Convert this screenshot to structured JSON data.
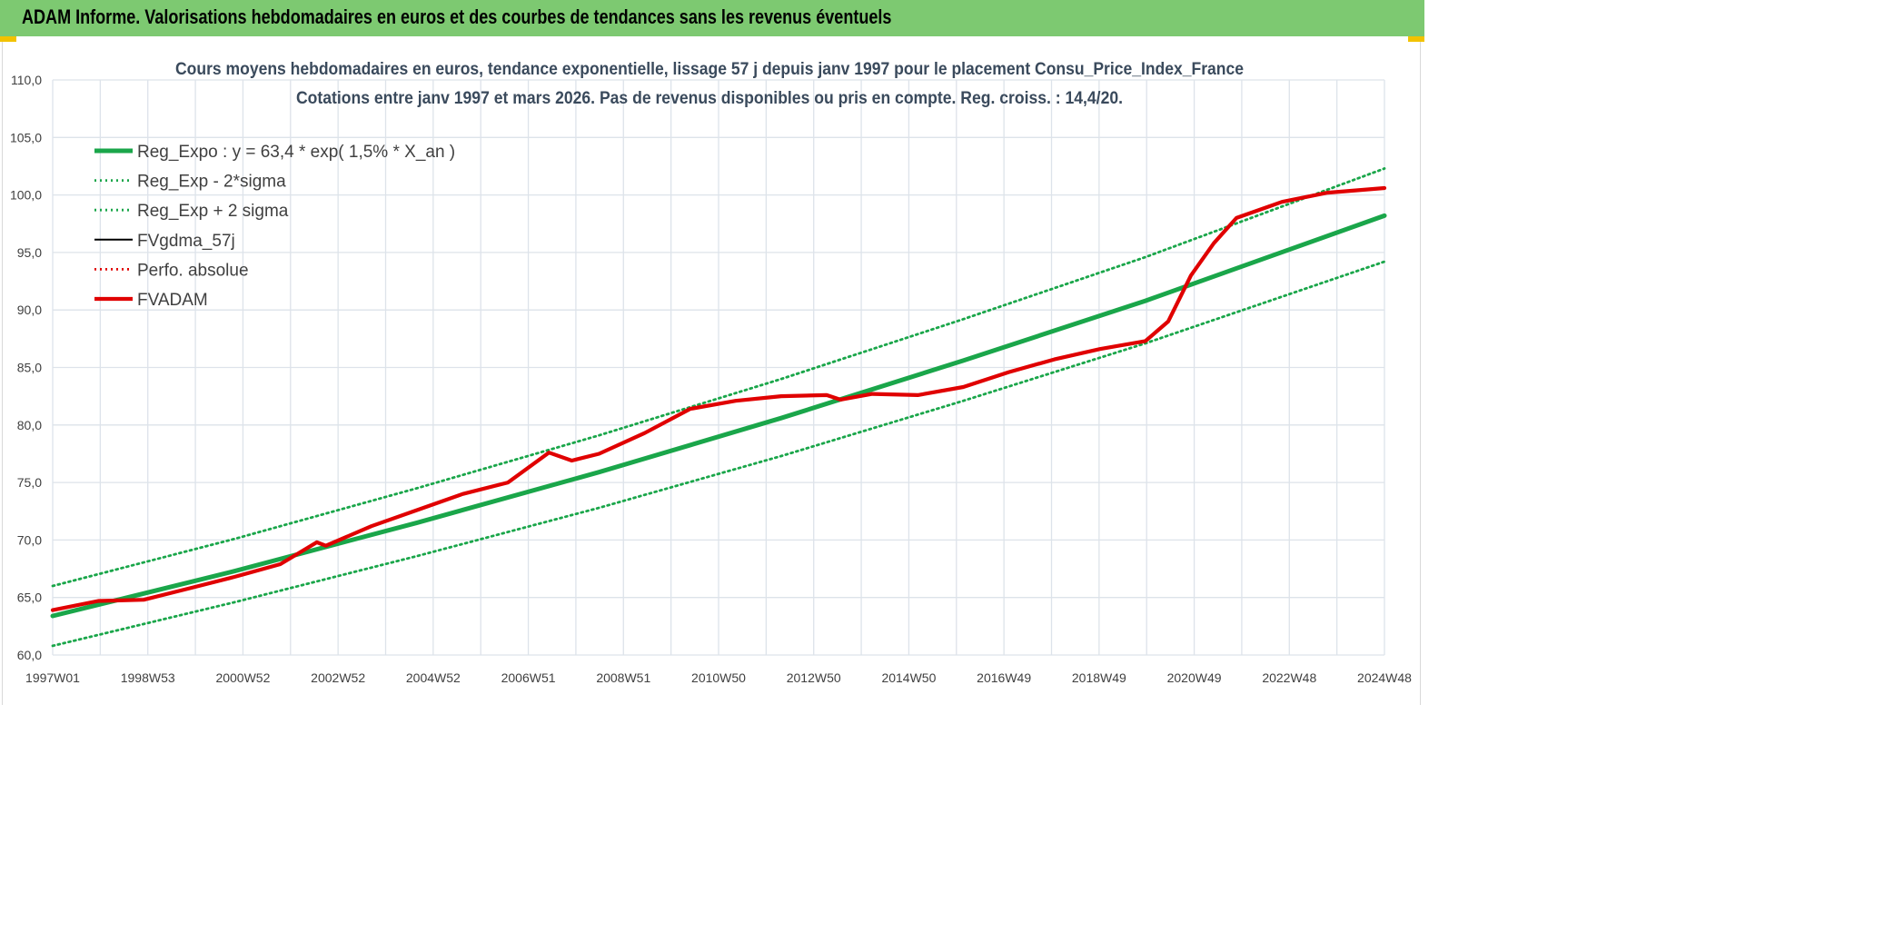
{
  "header": {
    "title": "ADAM Informe. Valorisations hebdomadaires en euros et des courbes de tendances sans les revenus éventuels"
  },
  "colors": {
    "banner": "#7dc971",
    "trend": "#1aa64a",
    "fvadam": "#e00000",
    "fvgdma": "#000000",
    "grid": "#dde3ea",
    "accent": "#f2c200"
  },
  "chart_data": {
    "type": "line",
    "title": "Cours moyens hebdomadaires en euros, tendance exponentielle, lissage 57 j depuis janv 1997 pour le placement Consu_Price_Index_France",
    "subtitle": "Cotations entre janv 1997 et mars 2026. Pas de revenus disponibles ou pris en compte. Reg. croiss. : 14,4/20.",
    "xlabel": "",
    "ylabel": "",
    "ylim": [
      60,
      110
    ],
    "yticks": [
      "60,0",
      "65,0",
      "70,0",
      "75,0",
      "80,0",
      "85,0",
      "90,0",
      "95,0",
      "100,0",
      "105,0",
      "110,0"
    ],
    "xticks": [
      "1997W01",
      "1998W53",
      "2000W52",
      "2002W52",
      "2004W52",
      "2006W51",
      "2008W51",
      "2010W50",
      "2012W50",
      "2014W50",
      "2016W49",
      "2018W49",
      "2020W49",
      "2022W48",
      "2024W48"
    ],
    "xlim": [
      1997.0,
      2026.25
    ],
    "grid": true,
    "legend_position": "top-left",
    "series": [
      {
        "name": "Reg_Expo : y = 63,4 * exp( 1,5% *  X_an )",
        "style": "solid-thick",
        "color": "#1aa64a",
        "x": [
          1997.0,
          2001.0,
          2005.0,
          2009.0,
          2013.0,
          2017.0,
          2021.0,
          2026.25
        ],
        "values": [
          63.4,
          67.3,
          71.5,
          75.9,
          80.6,
          85.6,
          90.8,
          98.2
        ]
      },
      {
        "name": "Reg_Exp - 2*sigma",
        "style": "dotted",
        "color": "#1aa64a",
        "x": [
          1997.0,
          2001.0,
          2005.0,
          2009.0,
          2013.0,
          2017.0,
          2021.0,
          2026.25
        ],
        "values": [
          60.8,
          64.6,
          68.6,
          72.8,
          77.3,
          82.1,
          87.1,
          94.2
        ]
      },
      {
        "name": "Reg_Exp + 2 sigma",
        "style": "dotted",
        "color": "#1aa64a",
        "x": [
          1997.0,
          2001.0,
          2005.0,
          2009.0,
          2013.0,
          2017.0,
          2021.0,
          2026.25
        ],
        "values": [
          66.0,
          70.1,
          74.5,
          79.1,
          84.0,
          89.2,
          94.6,
          102.3
        ]
      },
      {
        "name": "FVgdma_57j",
        "style": "solid",
        "color": "#000000",
        "x": [
          1997.0,
          1998.0,
          1999.0,
          2000.0,
          2001.0,
          2002.0,
          2002.8,
          2003.0,
          2004.0,
          2005.0,
          2006.0,
          2007.0,
          2007.9,
          2008.4,
          2009.0,
          2010.0,
          2011.0,
          2012.0,
          2013.0,
          2014.0,
          2014.3,
          2015.0,
          2016.0,
          2017.0,
          2018.0,
          2019.0,
          2020.0,
          2021.0,
          2021.5,
          2022.0,
          2022.5,
          2023.0,
          2024.0,
          2025.0,
          2026.25
        ],
        "values": [
          63.9,
          64.7,
          64.8,
          65.8,
          66.8,
          67.9,
          69.8,
          69.5,
          71.2,
          72.6,
          74.0,
          75.0,
          77.6,
          76.9,
          77.5,
          79.3,
          81.4,
          82.1,
          82.5,
          82.6,
          82.2,
          82.7,
          82.6,
          83.3,
          84.6,
          85.7,
          86.6,
          87.3,
          89.0,
          93.0,
          95.8,
          98.0,
          99.4,
          100.2,
          100.6
        ]
      },
      {
        "name": "Perfo. absolue",
        "style": "dotted",
        "color": "#e00000",
        "x": [],
        "values": []
      },
      {
        "name": "FVADAM",
        "style": "solid-thick",
        "color": "#e00000",
        "x": [
          1997.0,
          1998.0,
          1999.0,
          2000.0,
          2001.0,
          2002.0,
          2002.8,
          2003.0,
          2004.0,
          2005.0,
          2006.0,
          2007.0,
          2007.9,
          2008.4,
          2009.0,
          2010.0,
          2011.0,
          2012.0,
          2013.0,
          2014.0,
          2014.3,
          2015.0,
          2016.0,
          2017.0,
          2018.0,
          2019.0,
          2020.0,
          2021.0,
          2021.5,
          2022.0,
          2022.5,
          2023.0,
          2024.0,
          2025.0,
          2026.25
        ],
        "values": [
          63.9,
          64.7,
          64.8,
          65.8,
          66.8,
          67.9,
          69.8,
          69.5,
          71.2,
          72.6,
          74.0,
          75.0,
          77.6,
          76.9,
          77.5,
          79.3,
          81.4,
          82.1,
          82.5,
          82.6,
          82.2,
          82.7,
          82.6,
          83.3,
          84.6,
          85.7,
          86.6,
          87.3,
          89.0,
          93.0,
          95.8,
          98.0,
          99.4,
          100.2,
          100.6
        ]
      }
    ]
  }
}
